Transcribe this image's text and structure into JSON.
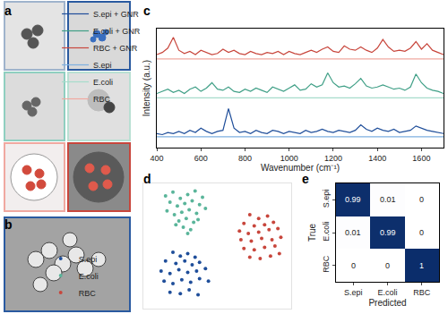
{
  "chart_data": [
    {
      "type": "image",
      "annotations": [
        "a"
      ]
    },
    {
      "type": "image",
      "annotations": [
        "b"
      ]
    },
    {
      "type": "line",
      "annotations": [
        "c"
      ],
      "x_label": "Wavenumber (cm⁻¹)",
      "y_label": "Intensity (a.u.)",
      "x": [
        400,
        425,
        450,
        475,
        500,
        525,
        550,
        575,
        600,
        625,
        650,
        675,
        700,
        725,
        750,
        775,
        800,
        825,
        850,
        875,
        900,
        925,
        950,
        975,
        1000,
        1025,
        1050,
        1075,
        1100,
        1125,
        1150,
        1175,
        1200,
        1225,
        1250,
        1275,
        1300,
        1325,
        1350,
        1375,
        1400,
        1425,
        1450,
        1475,
        1500,
        1525,
        1550,
        1575,
        1600,
        1625,
        1650,
        1675,
        1700
      ],
      "series": [
        {
          "name": "S.epi + GNR",
          "color": "#1f4e9a",
          "values": [
            1.3,
            1.2,
            1.4,
            1.3,
            1.5,
            1.3,
            1.6,
            1.4,
            1.8,
            1.5,
            1.3,
            1.5,
            1.6,
            3.6,
            1.8,
            1.4,
            1.5,
            1.3,
            1.6,
            1.4,
            1.3,
            1.6,
            1.5,
            1.3,
            1.5,
            1.4,
            1.3,
            1.6,
            1.4,
            1.5,
            1.7,
            1.5,
            1.4,
            1.6,
            1.5,
            1.4,
            1.6,
            2.1,
            1.7,
            1.5,
            1.8,
            1.6,
            1.5,
            1.7,
            1.4,
            1.5,
            1.6,
            2.0,
            1.8,
            1.6,
            1.5,
            1.4,
            1.3
          ]
        },
        {
          "name": "E.coli + GNR",
          "color": "#3f9f86",
          "values": [
            5.0,
            5.2,
            5.4,
            5.1,
            5.3,
            5.0,
            5.4,
            5.6,
            5.2,
            5.5,
            6.0,
            5.4,
            5.3,
            5.6,
            5.2,
            5.1,
            5.4,
            5.2,
            5.5,
            5.3,
            5.1,
            5.6,
            5.4,
            5.2,
            5.5,
            5.8,
            5.3,
            5.4,
            5.9,
            5.6,
            5.8,
            6.9,
            6.0,
            5.6,
            5.7,
            5.5,
            5.9,
            6.4,
            5.7,
            5.5,
            5.6,
            5.8,
            5.6,
            5.4,
            5.5,
            5.3,
            5.6,
            6.8,
            6.0,
            5.5,
            5.3,
            5.2,
            5.0
          ]
        },
        {
          "name": "RBC + GNR",
          "color": "#c8463c",
          "values": [
            8.6,
            8.8,
            9.2,
            10.2,
            9.0,
            8.7,
            8.9,
            8.6,
            9.0,
            8.8,
            8.6,
            8.7,
            9.1,
            8.8,
            9.0,
            8.7,
            8.6,
            8.9,
            8.7,
            8.6,
            8.8,
            8.7,
            8.9,
            8.6,
            8.9,
            8.7,
            8.6,
            8.8,
            9.0,
            8.8,
            9.1,
            9.3,
            8.9,
            8.8,
            9.4,
            9.1,
            9.0,
            9.3,
            9.0,
            8.8,
            9.2,
            10.0,
            9.3,
            8.9,
            9.0,
            8.9,
            9.2,
            9.8,
            9.1,
            9.6,
            9.0,
            8.8,
            8.6
          ]
        },
        {
          "name": "S.epi",
          "color": "#7fb0e0",
          "values": [
            1.0,
            1.0,
            1.0,
            1.0,
            1.0,
            1.0,
            1.0,
            1.0,
            1.0,
            1.0,
            1.0,
            1.0,
            1.0,
            1.0,
            1.0,
            1.0,
            1.0,
            1.0,
            1.0,
            1.0,
            1.0,
            1.0,
            1.0,
            1.0,
            1.0,
            1.0,
            1.0,
            1.0,
            1.0,
            1.0,
            1.0,
            1.0,
            1.0,
            1.0,
            1.0,
            1.0,
            1.0,
            1.0,
            1.0,
            1.0,
            1.0,
            1.0,
            1.0,
            1.0,
            1.0,
            1.0,
            1.0,
            1.0,
            1.0,
            1.0,
            1.0,
            1.0,
            1.0
          ]
        },
        {
          "name": "E.coli",
          "color": "#a6dccb",
          "values": [
            4.6,
            4.6,
            4.6,
            4.6,
            4.6,
            4.6,
            4.6,
            4.6,
            4.6,
            4.6,
            4.6,
            4.6,
            4.6,
            4.6,
            4.6,
            4.6,
            4.6,
            4.6,
            4.6,
            4.6,
            4.6,
            4.6,
            4.6,
            4.6,
            4.6,
            4.6,
            4.6,
            4.6,
            4.6,
            4.6,
            4.6,
            4.6,
            4.6,
            4.6,
            4.6,
            4.6,
            4.6,
            4.6,
            4.6,
            4.6,
            4.6,
            4.6,
            4.6,
            4.6,
            4.6,
            4.6,
            4.6,
            4.6,
            4.6,
            4.6,
            4.6,
            4.6,
            4.6
          ]
        },
        {
          "name": "RBC",
          "color": "#f0a8a0",
          "values": [
            8.2,
            8.2,
            8.2,
            8.2,
            8.2,
            8.2,
            8.2,
            8.2,
            8.2,
            8.2,
            8.2,
            8.2,
            8.2,
            8.2,
            8.2,
            8.2,
            8.2,
            8.2,
            8.2,
            8.2,
            8.2,
            8.2,
            8.2,
            8.2,
            8.2,
            8.2,
            8.2,
            8.2,
            8.2,
            8.2,
            8.2,
            8.2,
            8.2,
            8.2,
            8.2,
            8.2,
            8.2,
            8.2,
            8.2,
            8.2,
            8.2,
            8.2,
            8.2,
            8.2,
            8.2,
            8.2,
            8.2,
            8.2,
            8.2,
            8.2,
            8.2,
            8.2,
            8.2
          ]
        }
      ],
      "xlim": [
        400,
        1700
      ],
      "xticks": [
        400,
        600,
        800,
        1000,
        1200,
        1400,
        1600
      ],
      "ylim": [
        0,
        11
      ],
      "tick_labels": "x",
      "legend": "top"
    },
    {
      "type": "scatter",
      "annotations": [
        "d"
      ],
      "series": [
        {
          "name": "S.epi",
          "color": "#1f4e9a",
          "x": [
            20,
            25,
            30,
            35,
            15,
            22,
            28,
            33,
            38,
            12,
            18,
            24,
            30,
            36,
            42,
            14,
            20,
            26,
            32,
            38,
            44,
            18,
            25,
            31,
            37
          ],
          "y": [
            45,
            42,
            44,
            41,
            38,
            36,
            38,
            35,
            37,
            30,
            28,
            31,
            29,
            30,
            32,
            22,
            20,
            23,
            21,
            24,
            22,
            13,
            12,
            15,
            11
          ]
        },
        {
          "name": "E.coli",
          "color": "#5ab59a",
          "x": [
            15,
            20,
            25,
            30,
            35,
            40,
            18,
            23,
            28,
            33,
            38,
            42,
            16,
            21,
            26,
            31,
            36,
            24,
            29,
            34,
            27,
            32,
            22,
            37,
            30
          ],
          "y": [
            90,
            93,
            88,
            91,
            94,
            89,
            85,
            82,
            84,
            86,
            83,
            80,
            78,
            75,
            77,
            79,
            76,
            70,
            72,
            69,
            65,
            63,
            67,
            71,
            60
          ]
        },
        {
          "name": "RBC",
          "color": "#c8463c",
          "x": [
            72,
            78,
            84,
            68,
            75,
            82,
            88,
            65,
            71,
            78,
            85,
            91,
            66,
            73,
            80,
            87,
            93,
            68,
            75,
            82,
            89,
            72,
            79,
            86,
            92
          ],
          "y": [
            75,
            72,
            74,
            68,
            66,
            67,
            69,
            62,
            60,
            61,
            63,
            64,
            55,
            54,
            56,
            55,
            57,
            48,
            47,
            49,
            50,
            41,
            40,
            42,
            44
          ]
        }
      ],
      "xlim": [
        0,
        100
      ],
      "ylim": [
        0,
        100
      ],
      "tick_labels": false,
      "legend": "lower right"
    },
    {
      "type": "heatmap",
      "annotations": [
        "e"
      ],
      "x_label": "Predicted",
      "y_label": "True",
      "x_categories": [
        "S.epi",
        "E.coli",
        "RBC"
      ],
      "y_categories": [
        "S.epi",
        "E.coli",
        "RBC"
      ],
      "cells": [
        [
          0.99,
          0.01,
          0
        ],
        [
          0.01,
          0.99,
          0
        ],
        [
          0,
          0,
          1
        ]
      ],
      "zlim": [
        0,
        1
      ],
      "data_labels": true
    }
  ]
}
